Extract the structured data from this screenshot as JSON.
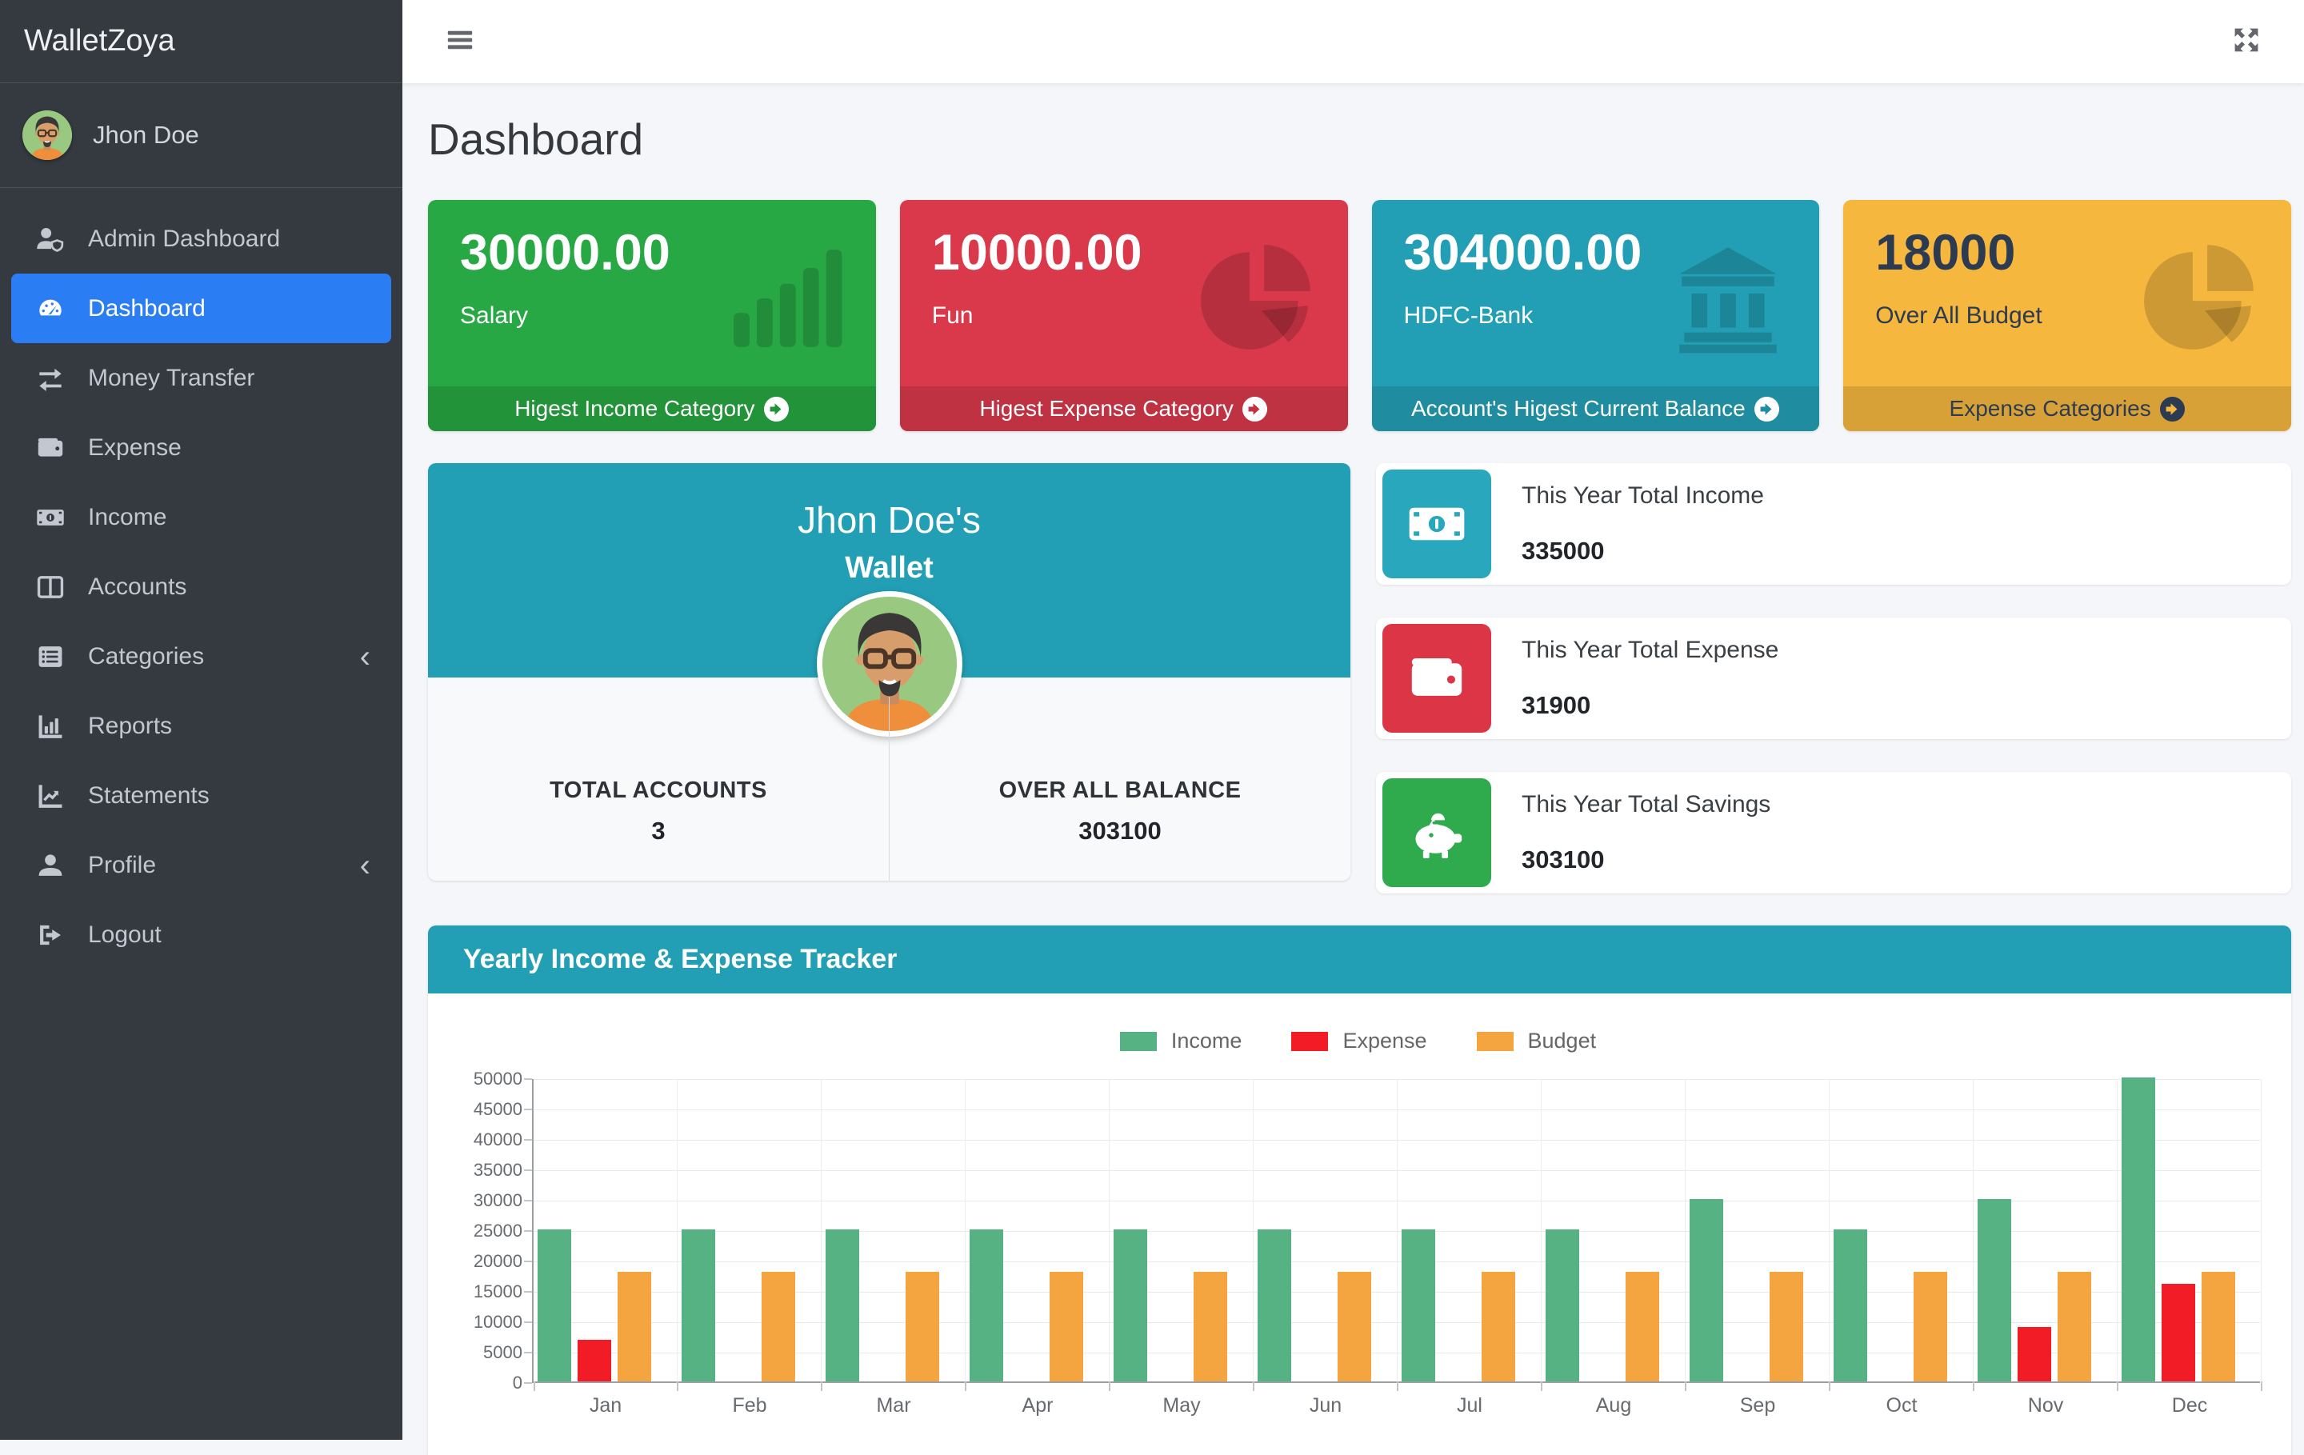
{
  "app": {
    "brand": "WalletZoya"
  },
  "colors": {
    "sidebar_bg": "#343a40",
    "active_menu": "#2b7df3",
    "teal": "#239fb5",
    "page_bg": "#f4f6f9"
  },
  "topbar": {
    "menu_toggle_icon": "bars",
    "fullscreen_icon": "expand-arrows"
  },
  "sidebar": {
    "user": {
      "name": "Jhon Doe",
      "avatar": "cartoon-man-avatar"
    },
    "items": [
      {
        "label": "Admin Dashboard",
        "icon": "user-shield",
        "active": false,
        "chevron": false
      },
      {
        "label": "Dashboard",
        "icon": "tachometer",
        "active": true,
        "chevron": false
      },
      {
        "label": "Money Transfer",
        "icon": "exchange",
        "active": false,
        "chevron": false
      },
      {
        "label": "Expense",
        "icon": "wallet",
        "active": false,
        "chevron": false
      },
      {
        "label": "Income",
        "icon": "money-bill",
        "active": false,
        "chevron": false
      },
      {
        "label": "Accounts",
        "icon": "columns",
        "active": false,
        "chevron": false
      },
      {
        "label": "Categories",
        "icon": "list",
        "active": false,
        "chevron": true
      },
      {
        "label": "Reports",
        "icon": "chart-bar",
        "active": false,
        "chevron": false
      },
      {
        "label": "Statements",
        "icon": "chart-line",
        "active": false,
        "chevron": false
      },
      {
        "label": "Profile",
        "icon": "user",
        "active": false,
        "chevron": true
      },
      {
        "label": "Logout",
        "icon": "sign-out",
        "active": false,
        "chevron": false
      }
    ]
  },
  "page": {
    "title": "Dashboard"
  },
  "summary_cards": [
    {
      "value": "30000.00",
      "label": "Salary",
      "footer": "Higest Income Category",
      "icon": "bars-ascending",
      "bg": "#28a745",
      "footer_bg": "#239339",
      "text": "#ffffff",
      "arrow_circle": "#ffffff",
      "arrow": "#239339"
    },
    {
      "value": "10000.00",
      "label": "Fun",
      "footer": "Higest Expense Category",
      "icon": "chart-pie",
      "bg": "#d9394a",
      "footer_bg": "#bf3241",
      "text": "#ffffff",
      "arrow_circle": "#ffffff",
      "arrow": "#bf3241"
    },
    {
      "value": "304000.00",
      "label": "HDFC-Bank",
      "footer": "Account's Higest Current Balance",
      "icon": "bank",
      "bg": "#239fb5",
      "footer_bg": "#1f8c9f",
      "text": "#ffffff",
      "arrow_circle": "#ffffff",
      "arrow": "#1f8c9f"
    },
    {
      "value": "18000",
      "label": "Over All Budget",
      "footer": "Expense Categories",
      "icon": "chart-pie",
      "bg": "#f5b73e",
      "footer_bg": "#d8a137",
      "text": "#2c3b51",
      "arrow_circle": "#2c3b51",
      "arrow": "#f5b73e"
    }
  ],
  "wallet_card": {
    "owner": "Jhon Doe's",
    "subtitle": "Wallet",
    "stats": [
      {
        "label": "TOTAL ACCOUNTS",
        "value": "3"
      },
      {
        "label": "OVER ALL BALANCE",
        "value": "303100"
      }
    ]
  },
  "year_stats": [
    {
      "label": "This Year Total Income",
      "value": "335000",
      "icon": "money-bill",
      "bg": "#29a8bd"
    },
    {
      "label": "This Year Total Expense",
      "value": "31900",
      "icon": "wallet",
      "bg": "#dc3545"
    },
    {
      "label": "This Year Total Savings",
      "value": "303100",
      "icon": "piggy-bank",
      "bg": "#2faa4d"
    }
  ],
  "chart_card": {
    "title": "Yearly Income & Expense Tracker"
  },
  "chart_data": {
    "type": "bar",
    "title": "Yearly Income & Expense Tracker",
    "categories": [
      "Jan",
      "Feb",
      "Mar",
      "Apr",
      "May",
      "Jun",
      "Jul",
      "Aug",
      "Sep",
      "Oct",
      "Nov",
      "Dec"
    ],
    "series": [
      {
        "name": "Income",
        "color": "#57b283",
        "values": [
          25000,
          25000,
          25000,
          25000,
          25000,
          25000,
          25000,
          25000,
          30000,
          25000,
          30000,
          50000
        ]
      },
      {
        "name": "Expense",
        "color": "#f11c26",
        "values": [
          6900,
          0,
          0,
          0,
          0,
          0,
          0,
          0,
          0,
          0,
          9000,
          16000
        ]
      },
      {
        "name": "Budget",
        "color": "#f5a53f",
        "values": [
          18000,
          18000,
          18000,
          18000,
          18000,
          18000,
          18000,
          18000,
          18000,
          18000,
          18000,
          18000
        ]
      }
    ],
    "xlabel": "",
    "ylabel": "",
    "ylim": [
      0,
      50000
    ],
    "ytick_step": 5000,
    "grid": true,
    "legend_position": "top"
  }
}
